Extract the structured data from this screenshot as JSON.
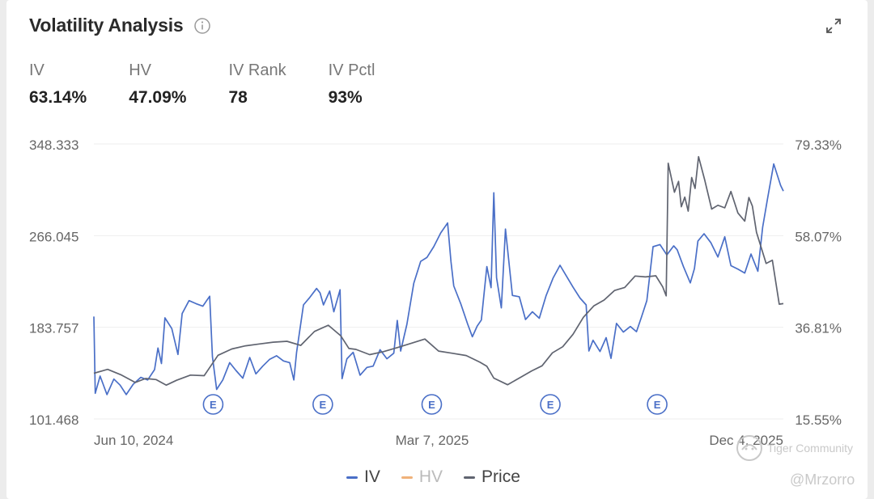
{
  "header": {
    "title": "Volatility Analysis"
  },
  "metrics": [
    {
      "label": "IV",
      "value": "63.14%"
    },
    {
      "label": "HV",
      "value": "47.09%"
    },
    {
      "label": "IV Rank",
      "value": "78"
    },
    {
      "label": "IV Pctl",
      "value": "93%"
    }
  ],
  "chart_data": {
    "type": "line",
    "x_tick_labels": [
      "Jun 10, 2024",
      "Mar 7, 2025",
      "Dec 4, 2025"
    ],
    "y_left_ticks": [
      "348.333",
      "266.045",
      "183.757",
      "101.468"
    ],
    "y_right_ticks": [
      "79.33%",
      "58.07%",
      "36.81%",
      "15.55%"
    ],
    "y_left_range": [
      101.468,
      348.333
    ],
    "y_right_range": [
      15.55,
      79.33
    ],
    "x_range": [
      0,
      100
    ],
    "legend": [
      "IV",
      "HV",
      "Price"
    ],
    "legend_placement": "bottom",
    "grid": "horizontal",
    "earnings_marker_label": "E",
    "earnings_markers_x": [
      17.3,
      33.2,
      49.0,
      66.2,
      81.7
    ],
    "colors": {
      "iv": "#4a6fc7",
      "hv": "#f0b27a",
      "price": "#606470",
      "grid": "#eeeeee",
      "legend_hv_text": "#bbbbbb"
    },
    "series": [
      {
        "name": "IV",
        "axis": "right",
        "points": [
          [
            0,
            39.3
          ],
          [
            0.2,
            21.5
          ],
          [
            0.9,
            25.5
          ],
          [
            1.9,
            21.2
          ],
          [
            2.9,
            24.8
          ],
          [
            3.8,
            23.4
          ],
          [
            4.7,
            21.2
          ],
          [
            5.7,
            23.6
          ],
          [
            6.8,
            25.2
          ],
          [
            7.8,
            24.6
          ],
          [
            8.8,
            27.0
          ],
          [
            9.3,
            32.0
          ],
          [
            9.8,
            28.4
          ],
          [
            10.3,
            39.0
          ],
          [
            11.3,
            36.5
          ],
          [
            12.2,
            30.5
          ],
          [
            12.8,
            40.0
          ],
          [
            13.8,
            43.0
          ],
          [
            14.8,
            42.3
          ],
          [
            15.8,
            41.7
          ],
          [
            16.8,
            44.0
          ],
          [
            17.2,
            30.0
          ],
          [
            17.8,
            22.4
          ],
          [
            18.7,
            24.6
          ],
          [
            19.7,
            28.6
          ],
          [
            20.6,
            26.8
          ],
          [
            21.6,
            25.0
          ],
          [
            22.6,
            29.8
          ],
          [
            23.5,
            26.0
          ],
          [
            24.5,
            27.8
          ],
          [
            25.5,
            29.4
          ],
          [
            26.5,
            30.2
          ],
          [
            27.5,
            29.0
          ],
          [
            28.4,
            28.6
          ],
          [
            29.0,
            24.6
          ],
          [
            29.4,
            31.0
          ],
          [
            30.4,
            42.0
          ],
          [
            31.3,
            43.7
          ],
          [
            32.3,
            45.8
          ],
          [
            32.8,
            44.8
          ],
          [
            33.3,
            42.0
          ],
          [
            34.2,
            45.2
          ],
          [
            34.8,
            40.4
          ],
          [
            35.7,
            45.5
          ],
          [
            36.0,
            24.9
          ],
          [
            36.7,
            29.5
          ],
          [
            37.6,
            31.0
          ],
          [
            38.6,
            25.7
          ],
          [
            39.6,
            27.5
          ],
          [
            40.5,
            27.8
          ],
          [
            41.5,
            31.6
          ],
          [
            42.5,
            29.5
          ],
          [
            43.5,
            30.8
          ],
          [
            44.0,
            38.4
          ],
          [
            44.5,
            31.3
          ],
          [
            45.4,
            37.5
          ],
          [
            46.4,
            47.0
          ],
          [
            47.4,
            52.1
          ],
          [
            48.3,
            53.0
          ],
          [
            49.3,
            55.5
          ],
          [
            50.3,
            58.7
          ],
          [
            51.3,
            61.0
          ],
          [
            51.8,
            52.0
          ],
          [
            52.2,
            46.4
          ],
          [
            53.2,
            42.3
          ],
          [
            54.2,
            37.6
          ],
          [
            54.9,
            34.6
          ],
          [
            55.6,
            37.1
          ],
          [
            56.2,
            38.5
          ],
          [
            57.0,
            50.9
          ],
          [
            57.6,
            46.0
          ],
          [
            58.0,
            68.0
          ],
          [
            58.4,
            48.3
          ],
          [
            59.1,
            41.3
          ],
          [
            59.7,
            59.6
          ],
          [
            60.7,
            44.2
          ],
          [
            61.7,
            43.9
          ],
          [
            62.6,
            38.6
          ],
          [
            63.6,
            40.4
          ],
          [
            64.6,
            38.9
          ],
          [
            65.6,
            44.2
          ],
          [
            66.6,
            48.2
          ],
          [
            67.6,
            51.2
          ],
          [
            68.5,
            48.8
          ],
          [
            69.5,
            46.1
          ],
          [
            70.5,
            43.6
          ],
          [
            71.4,
            42.0
          ],
          [
            71.8,
            31.3
          ],
          [
            72.4,
            33.8
          ],
          [
            73.4,
            31.2
          ],
          [
            74.3,
            34.4
          ],
          [
            75.0,
            29.6
          ],
          [
            75.8,
            37.7
          ],
          [
            76.8,
            35.7
          ],
          [
            77.8,
            37.0
          ],
          [
            78.7,
            35.8
          ],
          [
            79.4,
            39.1
          ],
          [
            80.2,
            43.0
          ],
          [
            81.1,
            55.5
          ],
          [
            82.1,
            56.0
          ],
          [
            83.1,
            53.6
          ],
          [
            84.1,
            55.7
          ],
          [
            84.6,
            54.8
          ],
          [
            85.5,
            50.9
          ],
          [
            86.5,
            47.1
          ],
          [
            87.1,
            50.4
          ],
          [
            87.6,
            56.8
          ],
          [
            88.5,
            58.5
          ],
          [
            89.5,
            56.4
          ],
          [
            90.5,
            53.1
          ],
          [
            91.5,
            57.8
          ],
          [
            92.4,
            51.1
          ],
          [
            93.4,
            50.3
          ],
          [
            94.4,
            49.4
          ],
          [
            95.3,
            53.8
          ],
          [
            96.3,
            49.8
          ],
          [
            97.0,
            60.0
          ],
          [
            97.7,
            66.6
          ],
          [
            98.6,
            74.7
          ],
          [
            99.6,
            69.7
          ],
          [
            100,
            68.4
          ]
        ]
      },
      {
        "name": "Price",
        "axis": "left",
        "points": [
          [
            0,
            142.5
          ],
          [
            2.0,
            146.0
          ],
          [
            4.0,
            140.9
          ],
          [
            6.0,
            134.2
          ],
          [
            7.5,
            137.8
          ],
          [
            9.0,
            136.8
          ],
          [
            10.5,
            131.8
          ],
          [
            12.0,
            136.2
          ],
          [
            14.0,
            140.8
          ],
          [
            16.0,
            140.3
          ],
          [
            18.0,
            158.6
          ],
          [
            20.0,
            164.3
          ],
          [
            22.0,
            167.1
          ],
          [
            24.0,
            168.8
          ],
          [
            26.0,
            170.4
          ],
          [
            28.0,
            171.2
          ],
          [
            30.0,
            167.5
          ],
          [
            32.0,
            180.0
          ],
          [
            34.0,
            185.6
          ],
          [
            35.8,
            176.2
          ],
          [
            37.0,
            164.7
          ],
          [
            38.0,
            163.9
          ],
          [
            40.0,
            159.2
          ],
          [
            42.0,
            161.9
          ],
          [
            44.0,
            165.5
          ],
          [
            46.0,
            169.3
          ],
          [
            48.0,
            173.2
          ],
          [
            50.0,
            162.4
          ],
          [
            52.0,
            160.4
          ],
          [
            54.0,
            158.4
          ],
          [
            56.0,
            152.4
          ],
          [
            57.0,
            148.7
          ],
          [
            58.0,
            138.1
          ],
          [
            60.0,
            132.2
          ],
          [
            62.0,
            139.2
          ],
          [
            63.5,
            144.6
          ],
          [
            65.0,
            149.2
          ],
          [
            66.5,
            160.8
          ],
          [
            68.0,
            166.3
          ],
          [
            69.5,
            177.5
          ],
          [
            71.0,
            192.7
          ],
          [
            72.5,
            202.9
          ],
          [
            74.0,
            208.2
          ],
          [
            75.5,
            216.8
          ],
          [
            77.0,
            219.5
          ],
          [
            78.5,
            229.8
          ],
          [
            80.0,
            229.0
          ],
          [
            81.5,
            230.0
          ],
          [
            82.5,
            220.0
          ],
          [
            83.0,
            212.0
          ],
          [
            83.3,
            331.0
          ],
          [
            84.2,
            305.0
          ],
          [
            84.8,
            314.7
          ],
          [
            85.2,
            292.0
          ],
          [
            85.7,
            300.6
          ],
          [
            86.2,
            288.0
          ],
          [
            86.7,
            318.2
          ],
          [
            87.2,
            308.4
          ],
          [
            87.7,
            336.9
          ],
          [
            88.6,
            315.7
          ],
          [
            89.6,
            289.9
          ],
          [
            90.5,
            293.3
          ],
          [
            91.5,
            291.0
          ],
          [
            92.4,
            305.7
          ],
          [
            93.4,
            286.4
          ],
          [
            94.4,
            279.1
          ],
          [
            95.0,
            300.3
          ],
          [
            95.5,
            292.6
          ],
          [
            96.1,
            269.0
          ],
          [
            97.5,
            241.1
          ],
          [
            98.4,
            243.9
          ],
          [
            99.4,
            204.5
          ],
          [
            100,
            205.0
          ]
        ]
      }
    ]
  },
  "legend_items": [
    {
      "label": "IV",
      "key": "iv"
    },
    {
      "label": "HV",
      "key": "hv"
    },
    {
      "label": "Price",
      "key": "price"
    }
  ],
  "watermark": {
    "community": "Tiger Community",
    "user": "@Mrzorro"
  }
}
